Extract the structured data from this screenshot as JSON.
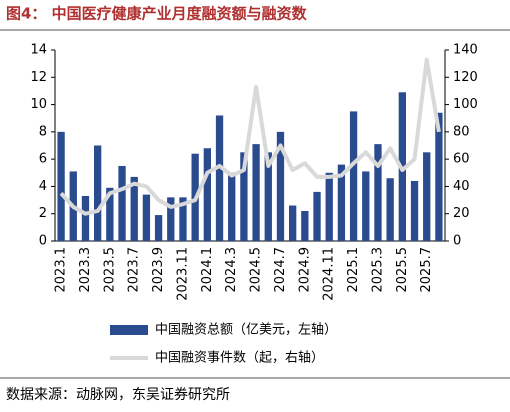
{
  "chart_data": {
    "type": "combo",
    "title": "图4：  中国医疗健康产业月度融资额与融资数",
    "source": "数据来源：动脉网，东吴证券研究所",
    "categories": [
      "2023.1",
      null,
      "2023.3",
      null,
      "2023.5",
      null,
      "2023.7",
      null,
      "2023.9",
      null,
      "2023.11",
      null,
      "2024.1",
      null,
      "2024.3",
      null,
      "2024.5",
      null,
      "2024.7",
      null,
      "2024.9",
      null,
      "2024.11",
      null,
      "2025.1",
      null,
      "2025.3",
      null,
      "2025.5",
      null,
      "2025.7",
      null
    ],
    "series": [
      {
        "name": "中国融资总额（亿美元，左轴）",
        "type": "bar",
        "axis": "y",
        "color": "#2b4b8f",
        "values": [
          8.0,
          5.1,
          3.3,
          7.0,
          3.9,
          5.5,
          4.7,
          3.4,
          1.9,
          3.2,
          3.2,
          6.4,
          6.8,
          9.2,
          5.0,
          6.5,
          7.1,
          6.5,
          8.0,
          2.6,
          2.2,
          3.6,
          5.0,
          5.6,
          9.5,
          5.1,
          7.1,
          4.6,
          10.9,
          4.4,
          6.5,
          9.4
        ]
      },
      {
        "name": "中国融资事件数（起，右轴）",
        "type": "line",
        "axis": "y2",
        "color": "#d9d9d9",
        "values": [
          35,
          25,
          20,
          22,
          35,
          38,
          42,
          40,
          30,
          25,
          27,
          30,
          50,
          55,
          48,
          52,
          113,
          55,
          70,
          52,
          57,
          47,
          47,
          48,
          57,
          65,
          55,
          68,
          52,
          60,
          133,
          80
        ]
      }
    ],
    "ylim": [
      0,
      14
    ],
    "yticks": [
      0,
      2,
      4,
      6,
      8,
      10,
      12,
      14
    ],
    "y2lim": [
      0,
      140
    ],
    "y2ticks": [
      0,
      20,
      40,
      60,
      80,
      100,
      120,
      140
    ]
  }
}
